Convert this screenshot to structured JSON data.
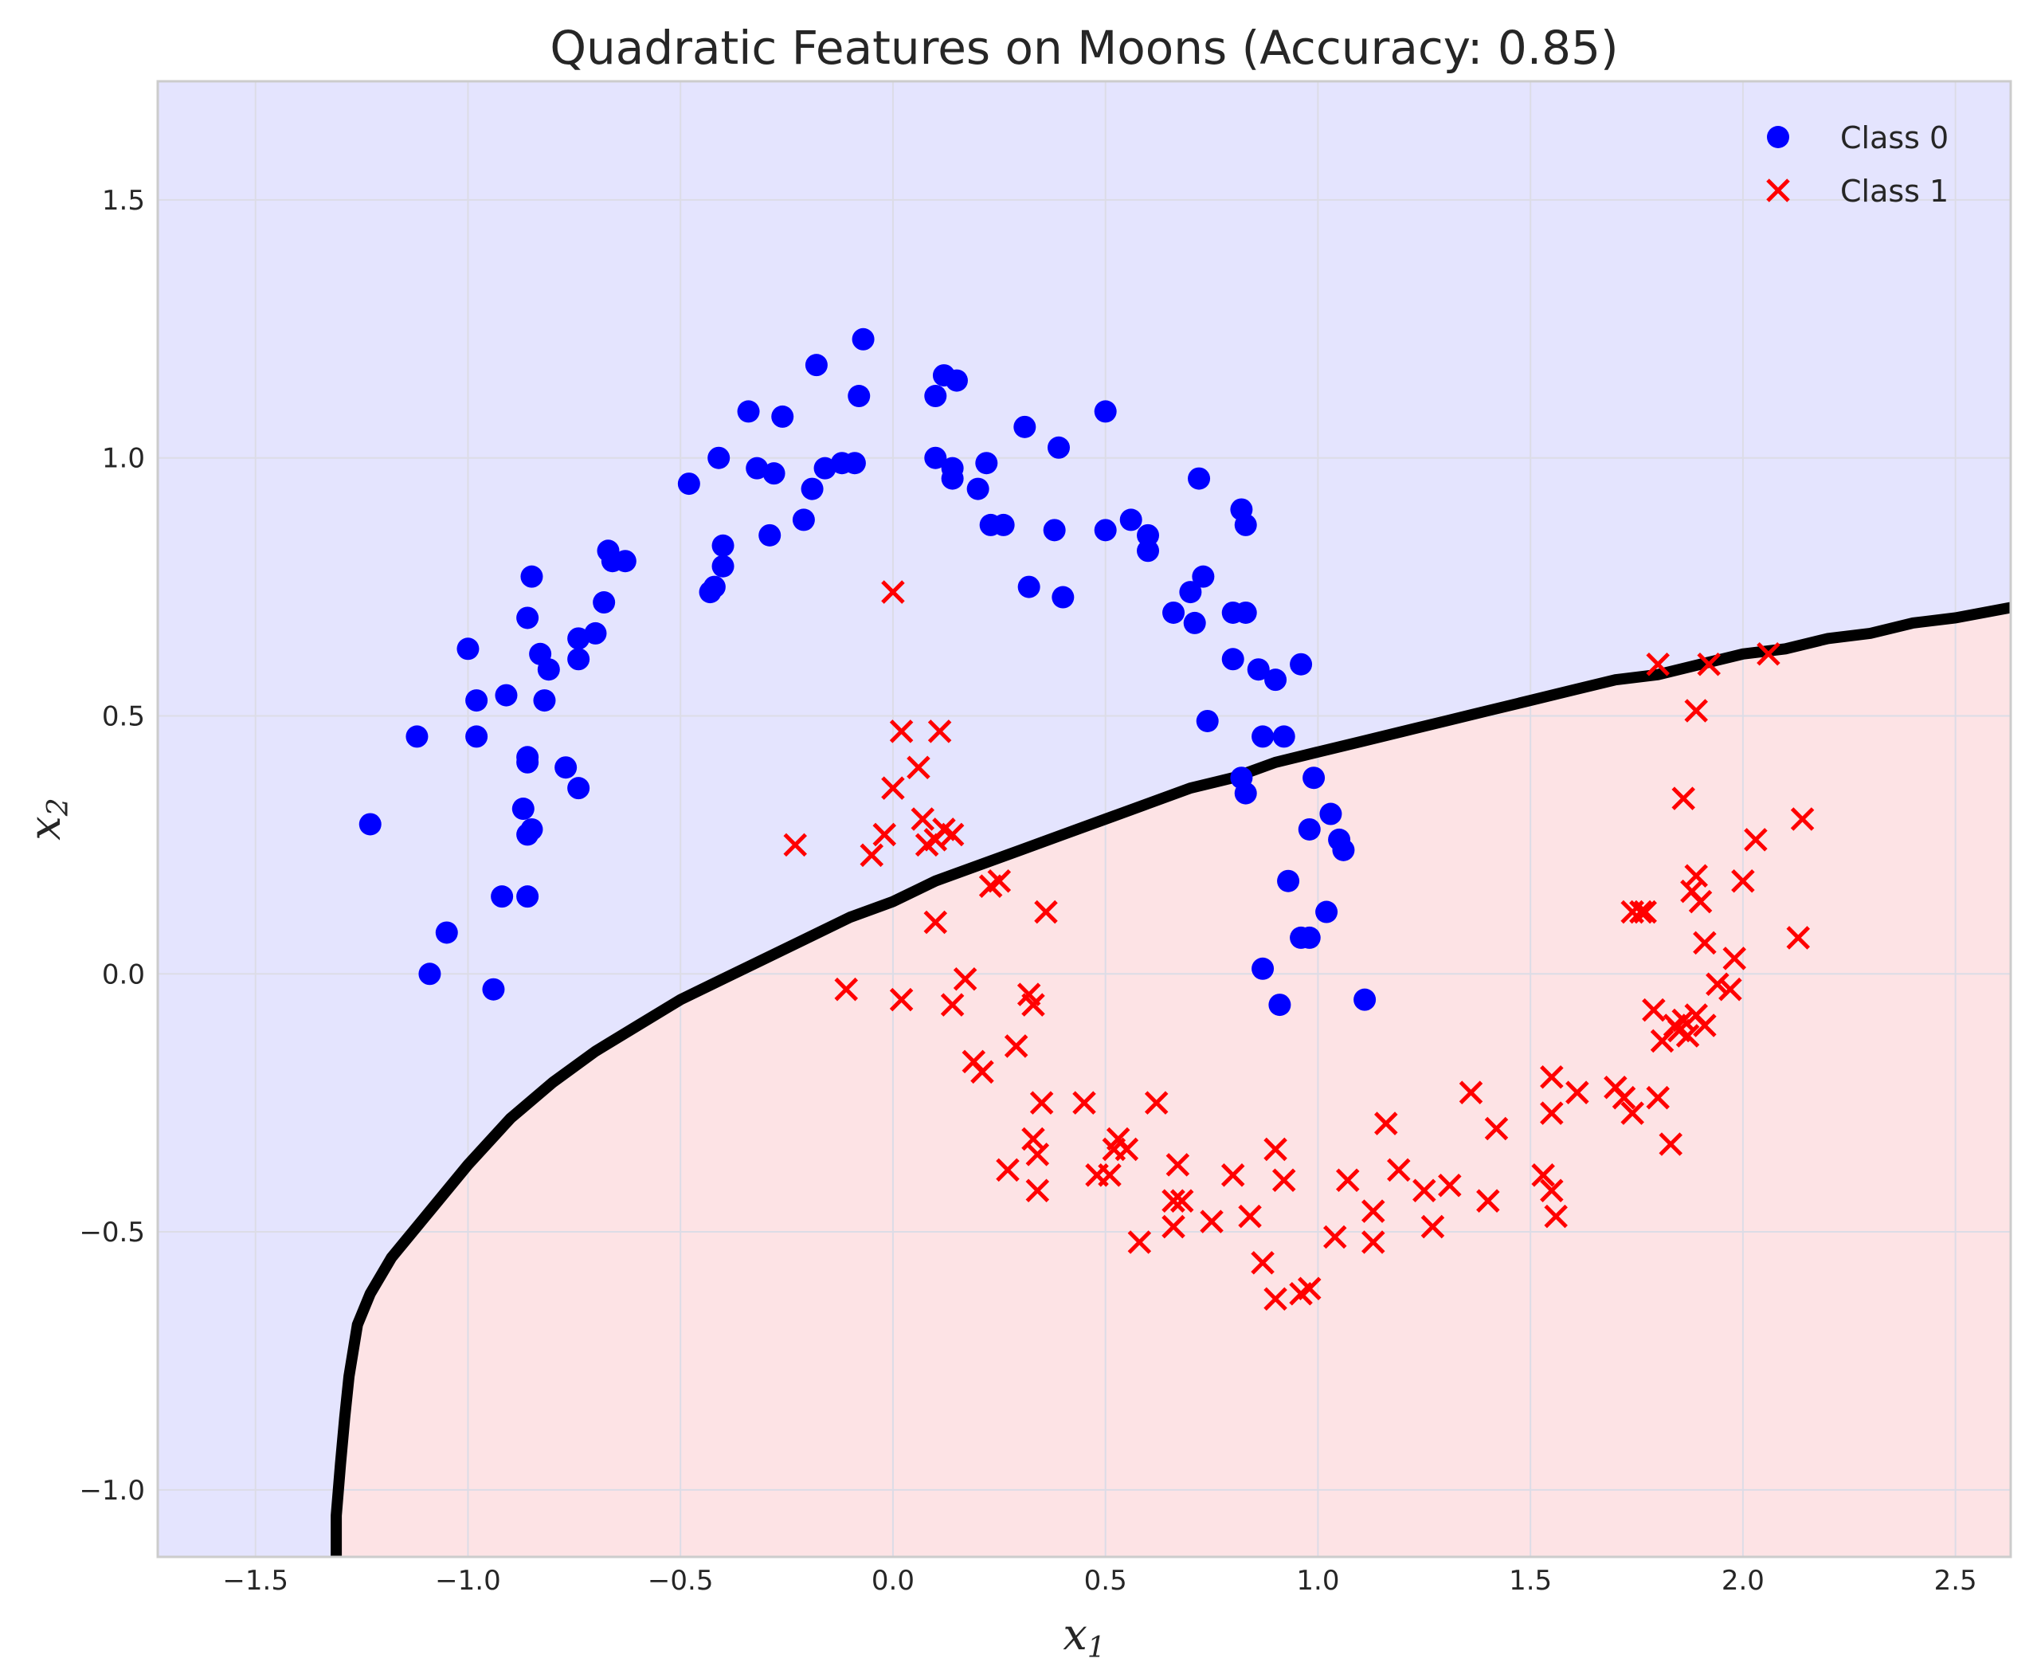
{
  "chart_data": {
    "type": "scatter",
    "title": "Quadratic Features on Moons (Accuracy: 0.85)",
    "xlabel": "x1",
    "ylabel": "x2",
    "xlabel_main": "x",
    "xlabel_sub": "1",
    "ylabel_main": "x",
    "ylabel_sub": "2",
    "xlim": [
      -1.73,
      2.63
    ],
    "ylim": [
      -1.13,
      1.73
    ],
    "grid": true,
    "legend_position": "top-right",
    "x_ticks": [
      -1.5,
      -1.0,
      -0.5,
      0.0,
      0.5,
      1.0,
      1.5,
      2.0,
      2.5
    ],
    "x_tick_labels": [
      "−1.5",
      "−1.0",
      "−0.5",
      "0.0",
      "0.5",
      "1.0",
      "1.5",
      "2.0",
      "2.5"
    ],
    "y_ticks": [
      -1.0,
      -0.5,
      0.0,
      0.5,
      1.0,
      1.5
    ],
    "y_tick_labels": [
      "−1.0",
      "−0.5",
      "0.0",
      "0.5",
      "1.0",
      "1.5"
    ],
    "colors": {
      "class0": "#0000ff",
      "class1": "#ff0000",
      "region0": "#e4e4fe",
      "region1": "#fde3e5",
      "boundary": "#000000",
      "grid": "#dcdce6",
      "frame": "#cccccc"
    },
    "decision_boundary": [
      [
        -1.31,
        -1.13
      ],
      [
        -1.31,
        -1.05
      ],
      [
        -1.3,
        -0.95
      ],
      [
        -1.29,
        -0.86
      ],
      [
        -1.28,
        -0.78
      ],
      [
        -1.26,
        -0.68
      ],
      [
        -1.23,
        -0.62
      ],
      [
        -1.18,
        -0.55
      ],
      [
        -1.1,
        -0.47
      ],
      [
        -1.0,
        -0.37
      ],
      [
        -0.9,
        -0.28
      ],
      [
        -0.8,
        -0.21
      ],
      [
        -0.7,
        -0.15
      ],
      [
        -0.6,
        -0.1
      ],
      [
        -0.5,
        -0.05
      ],
      [
        -0.4,
        -0.01
      ],
      [
        -0.3,
        0.03
      ],
      [
        -0.2,
        0.07
      ],
      [
        -0.1,
        0.11
      ],
      [
        0.0,
        0.14
      ],
      [
        0.1,
        0.18
      ],
      [
        0.2,
        0.21
      ],
      [
        0.3,
        0.24
      ],
      [
        0.4,
        0.27
      ],
      [
        0.5,
        0.3
      ],
      [
        0.6,
        0.33
      ],
      [
        0.7,
        0.36
      ],
      [
        0.8,
        0.38
      ],
      [
        0.9,
        0.41
      ],
      [
        1.0,
        0.43
      ],
      [
        1.1,
        0.45
      ],
      [
        1.2,
        0.47
      ],
      [
        1.3,
        0.49
      ],
      [
        1.4,
        0.51
      ],
      [
        1.5,
        0.53
      ],
      [
        1.6,
        0.55
      ],
      [
        1.7,
        0.57
      ],
      [
        1.8,
        0.58
      ],
      [
        1.9,
        0.6
      ],
      [
        2.0,
        0.62
      ],
      [
        2.1,
        0.63
      ],
      [
        2.2,
        0.65
      ],
      [
        2.3,
        0.66
      ],
      [
        2.4,
        0.68
      ],
      [
        2.5,
        0.69
      ],
      [
        2.63,
        0.71
      ]
    ],
    "series": [
      {
        "name": "Class 0",
        "marker": "circle",
        "points": [
          [
            -1.23,
            0.29
          ],
          [
            -1.12,
            0.46
          ],
          [
            -1.09,
            0.0
          ],
          [
            -1.05,
            0.08
          ],
          [
            -1.0,
            0.63
          ],
          [
            -0.98,
            0.53
          ],
          [
            -0.98,
            0.46
          ],
          [
            -0.94,
            -0.03
          ],
          [
            -0.92,
            0.15
          ],
          [
            -0.91,
            0.54
          ],
          [
            -0.87,
            0.32
          ],
          [
            -0.86,
            0.69
          ],
          [
            -0.86,
            0.41
          ],
          [
            -0.86,
            0.42
          ],
          [
            -0.86,
            0.27
          ],
          [
            -0.85,
            0.77
          ],
          [
            -0.85,
            0.28
          ],
          [
            -0.86,
            0.15
          ],
          [
            -0.83,
            0.62
          ],
          [
            -0.82,
            0.53
          ],
          [
            -0.81,
            0.59
          ],
          [
            -0.77,
            0.4
          ],
          [
            -0.74,
            0.36
          ],
          [
            -0.74,
            0.65
          ],
          [
            -0.74,
            0.61
          ],
          [
            -0.7,
            0.66
          ],
          [
            -0.68,
            0.72
          ],
          [
            -0.67,
            0.82
          ],
          [
            -0.66,
            0.8
          ],
          [
            -0.63,
            0.8
          ],
          [
            -0.48,
            0.95
          ],
          [
            -0.43,
            0.74
          ],
          [
            -0.42,
            0.75
          ],
          [
            -0.41,
            1.0
          ],
          [
            -0.4,
            0.83
          ],
          [
            -0.4,
            0.79
          ],
          [
            -0.34,
            1.09
          ],
          [
            -0.32,
            0.98
          ],
          [
            -0.29,
            0.85
          ],
          [
            -0.28,
            0.97
          ],
          [
            -0.26,
            1.08
          ],
          [
            -0.21,
            0.88
          ],
          [
            -0.19,
            0.94
          ],
          [
            -0.18,
            1.18
          ],
          [
            -0.16,
            0.98
          ],
          [
            -0.12,
            0.99
          ],
          [
            -0.09,
            0.99
          ],
          [
            -0.08,
            1.12
          ],
          [
            -0.07,
            1.23
          ],
          [
            0.1,
            1.12
          ],
          [
            0.1,
            1.0
          ],
          [
            0.12,
            1.16
          ],
          [
            0.14,
            0.98
          ],
          [
            0.14,
            0.96
          ],
          [
            0.15,
            1.15
          ],
          [
            0.2,
            0.94
          ],
          [
            0.22,
            0.99
          ],
          [
            0.23,
            0.87
          ],
          [
            0.26,
            0.87
          ],
          [
            0.31,
            1.06
          ],
          [
            0.32,
            0.75
          ],
          [
            0.38,
            0.86
          ],
          [
            0.39,
            1.02
          ],
          [
            0.4,
            0.73
          ],
          [
            0.5,
            1.09
          ],
          [
            0.5,
            0.86
          ],
          [
            0.56,
            0.88
          ],
          [
            0.6,
            0.82
          ],
          [
            0.6,
            0.85
          ],
          [
            0.66,
            0.7
          ],
          [
            0.7,
            0.74
          ],
          [
            0.71,
            0.68
          ],
          [
            0.72,
            0.96
          ],
          [
            0.73,
            0.77
          ],
          [
            0.74,
            0.49
          ],
          [
            0.8,
            0.7
          ],
          [
            0.8,
            0.61
          ],
          [
            0.82,
            0.38
          ],
          [
            0.82,
            0.9
          ],
          [
            0.83,
            0.87
          ],
          [
            0.83,
            0.35
          ],
          [
            0.83,
            0.7
          ],
          [
            0.86,
            0.59
          ],
          [
            0.87,
            0.46
          ],
          [
            0.87,
            0.01
          ],
          [
            0.9,
            0.57
          ],
          [
            0.91,
            -0.06
          ],
          [
            0.92,
            0.46
          ],
          [
            0.93,
            0.18
          ],
          [
            0.96,
            0.6
          ],
          [
            0.96,
            0.07
          ],
          [
            0.98,
            0.07
          ],
          [
            0.99,
            0.38
          ],
          [
            0.98,
            0.28
          ],
          [
            1.02,
            0.12
          ],
          [
            1.03,
            0.31
          ],
          [
            1.05,
            0.26
          ],
          [
            1.06,
            0.24
          ],
          [
            1.11,
            -0.05
          ]
        ]
      },
      {
        "name": "Class 1",
        "marker": "x",
        "points": [
          [
            -0.23,
            0.25
          ],
          [
            -0.11,
            -0.03
          ],
          [
            -0.05,
            0.23
          ],
          [
            -0.02,
            0.27
          ],
          [
            0.0,
            0.36
          ],
          [
            0.0,
            0.74
          ],
          [
            0.02,
            0.47
          ],
          [
            0.02,
            -0.05
          ],
          [
            0.06,
            0.4
          ],
          [
            0.07,
            0.3
          ],
          [
            0.08,
            0.25
          ],
          [
            0.1,
            0.26
          ],
          [
            0.1,
            0.1
          ],
          [
            0.11,
            0.47
          ],
          [
            0.12,
            0.28
          ],
          [
            0.14,
            0.27
          ],
          [
            0.14,
            -0.06
          ],
          [
            0.17,
            -0.01
          ],
          [
            0.19,
            -0.17
          ],
          [
            0.21,
            -0.19
          ],
          [
            0.23,
            0.17
          ],
          [
            0.25,
            0.18
          ],
          [
            0.27,
            -0.38
          ],
          [
            0.29,
            -0.14
          ],
          [
            0.32,
            -0.04
          ],
          [
            0.33,
            -0.06
          ],
          [
            0.33,
            -0.32
          ],
          [
            0.34,
            -0.35
          ],
          [
            0.34,
            -0.42
          ],
          [
            0.35,
            -0.25
          ],
          [
            0.36,
            0.12
          ],
          [
            0.45,
            -0.25
          ],
          [
            0.48,
            -0.39
          ],
          [
            0.51,
            -0.39
          ],
          [
            0.52,
            -0.34
          ],
          [
            0.53,
            -0.32
          ],
          [
            0.55,
            -0.34
          ],
          [
            0.58,
            -0.52
          ],
          [
            0.62,
            -0.25
          ],
          [
            0.66,
            -0.49
          ],
          [
            0.66,
            -0.44
          ],
          [
            0.67,
            -0.37
          ],
          [
            0.68,
            -0.44
          ],
          [
            0.75,
            -0.48
          ],
          [
            0.8,
            -0.39
          ],
          [
            0.84,
            -0.47
          ],
          [
            0.87,
            -0.56
          ],
          [
            0.9,
            -0.63
          ],
          [
            0.9,
            -0.34
          ],
          [
            0.92,
            -0.4
          ],
          [
            0.96,
            -0.62
          ],
          [
            0.98,
            -0.61
          ],
          [
            1.04,
            -0.51
          ],
          [
            1.07,
            -0.4
          ],
          [
            1.13,
            -0.52
          ],
          [
            1.13,
            -0.46
          ],
          [
            1.16,
            -0.29
          ],
          [
            1.19,
            -0.38
          ],
          [
            1.25,
            -0.42
          ],
          [
            1.27,
            -0.49
          ],
          [
            1.31,
            -0.41
          ],
          [
            1.36,
            -0.23
          ],
          [
            1.4,
            -0.44
          ],
          [
            1.42,
            -0.3
          ],
          [
            1.53,
            -0.39
          ],
          [
            1.55,
            -0.42
          ],
          [
            1.55,
            -0.2
          ],
          [
            1.55,
            -0.27
          ],
          [
            1.56,
            -0.47
          ],
          [
            1.61,
            -0.23
          ],
          [
            1.7,
            -0.22
          ],
          [
            1.72,
            -0.24
          ],
          [
            1.74,
            0.12
          ],
          [
            1.74,
            -0.27
          ],
          [
            1.76,
            0.12
          ],
          [
            1.77,
            0.12
          ],
          [
            1.79,
            -0.07
          ],
          [
            1.8,
            0.6
          ],
          [
            1.8,
            -0.24
          ],
          [
            1.81,
            -0.13
          ],
          [
            1.83,
            -0.33
          ],
          [
            1.84,
            -0.1
          ],
          [
            1.85,
            -0.11
          ],
          [
            1.86,
            0.34
          ],
          [
            1.86,
            -0.09
          ],
          [
            1.87,
            -0.12
          ],
          [
            1.88,
            0.16
          ],
          [
            1.89,
            0.51
          ],
          [
            1.89,
            0.19
          ],
          [
            1.89,
            -0.08
          ],
          [
            1.9,
            0.14
          ],
          [
            1.91,
            -0.1
          ],
          [
            1.91,
            0.06
          ],
          [
            1.92,
            0.6
          ],
          [
            1.94,
            -0.02
          ],
          [
            1.97,
            -0.03
          ],
          [
            1.98,
            0.03
          ],
          [
            2.0,
            0.18
          ],
          [
            2.03,
            0.26
          ],
          [
            2.06,
            0.62
          ],
          [
            2.13,
            0.07
          ],
          [
            2.14,
            0.3
          ]
        ]
      }
    ]
  }
}
